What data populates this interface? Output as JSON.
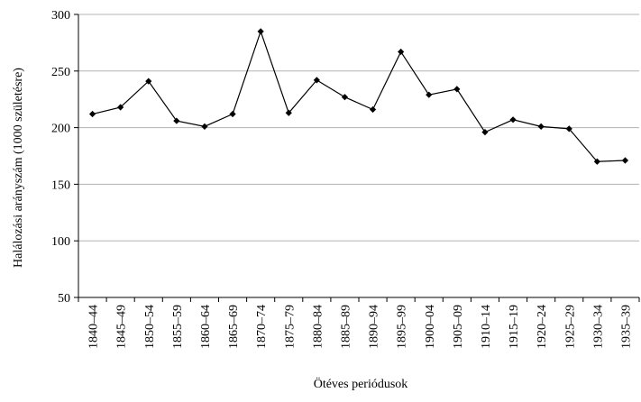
{
  "chart_data": {
    "type": "line",
    "title": "",
    "xlabel": "Ötéves periódusok",
    "ylabel": "Halálozási arányszám (1000 születésre)",
    "categories": [
      "1840–44",
      "1845–49",
      "1850–54",
      "1855–59",
      "1860–64",
      "1865–69",
      "1870–74",
      "1875–79",
      "1880–84",
      "1885–89",
      "1890–94",
      "1895–99",
      "1900–04",
      "1905–09",
      "1910–14",
      "1915–19",
      "1920–24",
      "1925–29",
      "1930–34",
      "1935–39"
    ],
    "series": [
      {
        "values": [
          212,
          218,
          241,
          206,
          201,
          212,
          285,
          213,
          242,
          227,
          216,
          267,
          229,
          234,
          196,
          207,
          201,
          199,
          170,
          171
        ]
      }
    ],
    "ylim": [
      50,
      300
    ],
    "yticks": [
      50,
      100,
      150,
      200,
      250,
      300
    ],
    "grid": "horizontal",
    "legend": "none",
    "colors": {
      "line": "#000000",
      "marker": "#000000",
      "grid": "#b3b3b3",
      "axis": "#000000"
    }
  }
}
